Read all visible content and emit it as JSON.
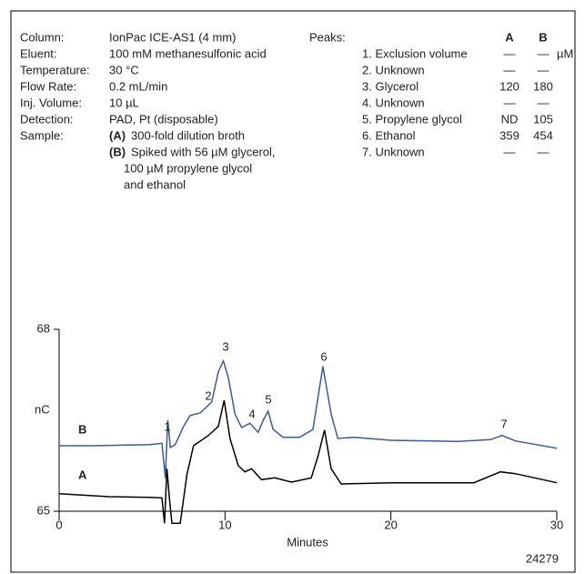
{
  "conditions": [
    {
      "label": "Column:",
      "value": "IonPac ICE-AS1 (4 mm)"
    },
    {
      "label": "Eluent:",
      "value": "100 mM methanesulfonic acid"
    },
    {
      "label": "Temperature:",
      "value": "30 °C"
    },
    {
      "label": "Flow Rate:",
      "value": "0.2 mL/min"
    },
    {
      "label": "Inj. Volume:",
      "value": "10 µL"
    },
    {
      "label": "Detection:",
      "value": "PAD, Pt (disposable)"
    }
  ],
  "sample": {
    "label": "Sample:",
    "items": [
      {
        "tag": "(A)",
        "lines": [
          "300-fold dilution broth"
        ]
      },
      {
        "tag": "(B)",
        "lines": [
          "Spiked with 56 µM glycerol,",
          "100 µM propylene glycol",
          "and ethanol"
        ]
      }
    ]
  },
  "peaks": {
    "title": "Peaks:",
    "columns": [
      "A",
      "B"
    ],
    "unit": "µM",
    "rows": [
      {
        "name": "1. Exclusion volume",
        "a": "—",
        "b": "—"
      },
      {
        "name": "2. Unknown",
        "a": "—",
        "b": "—"
      },
      {
        "name": "3. Glycerol",
        "a": 120,
        "b": 180
      },
      {
        "name": "4. Unknown",
        "a": "—",
        "b": "—"
      },
      {
        "name": "5. Propylene glycol",
        "a": "ND",
        "b": 105
      },
      {
        "name": "6. Ethanol",
        "a": 359,
        "b": 454
      },
      {
        "name": "7. Unknown",
        "a": "—",
        "b": "—"
      }
    ]
  },
  "chart_data": {
    "type": "line",
    "y_label": "nC",
    "x_label": "Minutes",
    "figure_id": "24279",
    "xlim": [
      0,
      30
    ],
    "xticks": [
      0,
      10,
      20,
      30
    ],
    "ylim": [
      65,
      68
    ],
    "yticks": [
      65,
      68
    ],
    "peak_labels": [
      "1",
      "2",
      "3",
      "4",
      "5",
      "6",
      "7"
    ],
    "series": [
      {
        "name": "B",
        "color": "#3b5ba5",
        "x": [
          0,
          2,
          4,
          5.5,
          6.2,
          6.4,
          6.55,
          6.7,
          7,
          7.5,
          7.9,
          8.5,
          9.2,
          9.6,
          9.9,
          10.2,
          10.6,
          11,
          11.5,
          12,
          12.3,
          12.6,
          12.9,
          13.5,
          14.5,
          15.3,
          15.9,
          16.4,
          16.8,
          17.8,
          20,
          24,
          26,
          26.7,
          27.5,
          30
        ],
        "values": [
          66.08,
          66.08,
          66.09,
          66.1,
          66.12,
          65.55,
          66.5,
          66.05,
          66.1,
          66.4,
          66.58,
          66.62,
          66.8,
          67.3,
          67.48,
          67.2,
          66.6,
          66.38,
          66.45,
          66.3,
          66.5,
          66.65,
          66.35,
          66.22,
          66.22,
          66.35,
          67.39,
          66.6,
          66.2,
          66.22,
          66.17,
          66.15,
          66.18,
          66.25,
          66.16,
          66.04
        ]
      },
      {
        "name": "A",
        "color": "#000000",
        "x": [
          0,
          3,
          5.5,
          6.2,
          6.35,
          6.5,
          6.65,
          6.8,
          7.3,
          7.7,
          8.1,
          9,
          9.6,
          9.95,
          10.3,
          10.8,
          11.2,
          11.6,
          12.2,
          13,
          14,
          15.2,
          15.6,
          16,
          16.4,
          17,
          20,
          25,
          26.6,
          27.5,
          30
        ],
        "values": [
          65.29,
          65.24,
          65.23,
          65.22,
          64.8,
          65.7,
          65.2,
          64.8,
          64.8,
          65.6,
          66.08,
          66.25,
          66.4,
          66.83,
          66.2,
          65.75,
          65.65,
          65.7,
          65.52,
          65.55,
          65.48,
          65.55,
          65.9,
          66.34,
          65.7,
          65.45,
          65.47,
          65.47,
          65.65,
          65.62,
          65.47
        ]
      }
    ]
  }
}
